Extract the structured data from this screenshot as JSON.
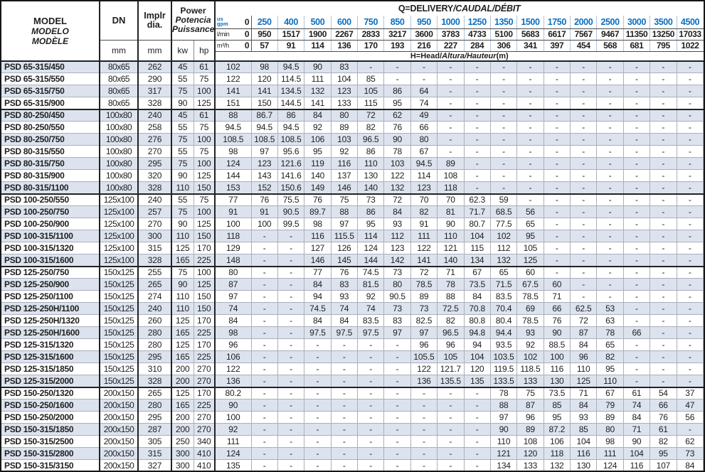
{
  "header": {
    "model_lines": [
      "MODEL",
      "MODELO",
      "MODÈLE"
    ],
    "dn_label": "DN",
    "implr_lines": [
      "Implr",
      "dia."
    ],
    "power_lines": [
      "Power",
      "Potencia",
      "Puissance"
    ],
    "mm": "mm",
    "kw": "kw",
    "hp": "hp",
    "q_label_main": "Q=DELIVERY",
    "q_label_intl": "/CAUDAL/DÉBIT",
    "h_label_pre": "H=Head/",
    "h_label_it": "Altura/Hauteur",
    "h_label_post": "(m)",
    "units": {
      "gpm_top": "us",
      "gpm_bottom": "gpm",
      "lmin": "l/min",
      "m3h": "m³/h"
    },
    "flow": {
      "gpm": [
        "0",
        "250",
        "400",
        "500",
        "600",
        "750",
        "850",
        "950",
        "1000",
        "1250",
        "1350",
        "1500",
        "1750",
        "2000",
        "2500",
        "3000",
        "3500",
        "4500"
      ],
      "lmin": [
        "0",
        "950",
        "1517",
        "1900",
        "2267",
        "2833",
        "3217",
        "3600",
        "3783",
        "4733",
        "5100",
        "5683",
        "6617",
        "7567",
        "9467",
        "11350",
        "13250",
        "17033"
      ],
      "m3h": [
        "0",
        "57",
        "91",
        "114",
        "136",
        "170",
        "193",
        "216",
        "227",
        "284",
        "306",
        "341",
        "397",
        "454",
        "568",
        "681",
        "795",
        "1022"
      ]
    }
  },
  "colors": {
    "accent_blue": "#0b6fc1",
    "row_shade": "#dce3ee",
    "border_dark": "#222222",
    "border_light": "#a9b0ba"
  },
  "table": {
    "rows": [
      {
        "model": "PSD 65-315/450",
        "dn": "80x65",
        "dia": "262",
        "kw": "45",
        "hp": "61",
        "group_end": false,
        "head": [
          "102",
          "98",
          "94.5",
          "90",
          "83",
          "-",
          "-",
          "-",
          "-",
          "-",
          "-",
          "-",
          "-",
          "-",
          "-",
          "-",
          "-",
          "-"
        ]
      },
      {
        "model": "PSD 65-315/550",
        "dn": "80x65",
        "dia": "290",
        "kw": "55",
        "hp": "75",
        "group_end": false,
        "head": [
          "122",
          "120",
          "114.5",
          "111",
          "104",
          "85",
          "-",
          "-",
          "-",
          "-",
          "-",
          "-",
          "-",
          "-",
          "-",
          "-",
          "-",
          "-"
        ]
      },
      {
        "model": "PSD 65-315/750",
        "dn": "80x65",
        "dia": "317",
        "kw": "75",
        "hp": "100",
        "group_end": false,
        "head": [
          "141",
          "141",
          "134.5",
          "132",
          "123",
          "105",
          "86",
          "64",
          "-",
          "-",
          "-",
          "-",
          "-",
          "-",
          "-",
          "-",
          "-",
          "-"
        ]
      },
      {
        "model": "PSD 65-315/900",
        "dn": "80x65",
        "dia": "328",
        "kw": "90",
        "hp": "125",
        "group_end": true,
        "head": [
          "151",
          "150",
          "144.5",
          "141",
          "133",
          "115",
          "95",
          "74",
          "-",
          "-",
          "-",
          "-",
          "-",
          "-",
          "-",
          "-",
          "-",
          "-"
        ]
      },
      {
        "model": "PSD 80-250/450",
        "dn": "100x80",
        "dia": "240",
        "kw": "45",
        "hp": "61",
        "group_end": false,
        "head": [
          "88",
          "86.7",
          "86",
          "84",
          "80",
          "72",
          "62",
          "49",
          "-",
          "-",
          "-",
          "-",
          "-",
          "-",
          "-",
          "-",
          "-",
          "-"
        ]
      },
      {
        "model": "PSD 80-250/550",
        "dn": "100x80",
        "dia": "258",
        "kw": "55",
        "hp": "75",
        "group_end": false,
        "head": [
          "94.5",
          "94.5",
          "94.5",
          "92",
          "89",
          "82",
          "76",
          "66",
          "-",
          "-",
          "-",
          "-",
          "-",
          "-",
          "-",
          "-",
          "-",
          "-"
        ]
      },
      {
        "model": "PSD 80-250/750",
        "dn": "100x80",
        "dia": "276",
        "kw": "75",
        "hp": "100",
        "group_end": false,
        "head": [
          "108.5",
          "108.5",
          "108.5",
          "106",
          "103",
          "96.5",
          "90",
          "80",
          "-",
          "-",
          "-",
          "-",
          "-",
          "-",
          "-",
          "-",
          "-",
          "-"
        ]
      },
      {
        "model": "PSD 80-315/550",
        "dn": "100x80",
        "dia": "270",
        "kw": "55",
        "hp": "75",
        "group_end": false,
        "head": [
          "98",
          "97",
          "95.6",
          "95",
          "92",
          "86",
          "78",
          "67",
          "-",
          "-",
          "-",
          "-",
          "-",
          "-",
          "-",
          "-",
          "-",
          "-"
        ]
      },
      {
        "model": "PSD 80-315/750",
        "dn": "100x80",
        "dia": "295",
        "kw": "75",
        "hp": "100",
        "group_end": false,
        "head": [
          "124",
          "123",
          "121.6",
          "119",
          "116",
          "110",
          "103",
          "94.5",
          "89",
          "-",
          "-",
          "-",
          "-",
          "-",
          "-",
          "-",
          "-",
          "-"
        ]
      },
      {
        "model": "PSD 80-315/900",
        "dn": "100x80",
        "dia": "320",
        "kw": "90",
        "hp": "125",
        "group_end": false,
        "head": [
          "144",
          "143",
          "141.6",
          "140",
          "137",
          "130",
          "122",
          "114",
          "108",
          "-",
          "-",
          "-",
          "-",
          "-",
          "-",
          "-",
          "-",
          "-"
        ]
      },
      {
        "model": "PSD 80-315/1100",
        "dn": "100x80",
        "dia": "328",
        "kw": "110",
        "hp": "150",
        "group_end": true,
        "head": [
          "153",
          "152",
          "150.6",
          "149",
          "146",
          "140",
          "132",
          "123",
          "118",
          "-",
          "-",
          "-",
          "-",
          "-",
          "-",
          "-",
          "-",
          "-"
        ]
      },
      {
        "model": "PSD 100-250/550",
        "dn": "125x100",
        "dia": "240",
        "kw": "55",
        "hp": "75",
        "group_end": false,
        "head": [
          "77",
          "76",
          "75.5",
          "76",
          "75",
          "73",
          "72",
          "70",
          "70",
          "62.3",
          "59",
          "-",
          "-",
          "-",
          "-",
          "-",
          "-",
          "-"
        ]
      },
      {
        "model": "PSD 100-250/750",
        "dn": "125x100",
        "dia": "257",
        "kw": "75",
        "hp": "100",
        "group_end": false,
        "head": [
          "91",
          "91",
          "90.5",
          "89.7",
          "88",
          "86",
          "84",
          "82",
          "81",
          "71.7",
          "68.5",
          "56",
          "-",
          "-",
          "-",
          "-",
          "-",
          "-"
        ]
      },
      {
        "model": "PSD 100-250/900",
        "dn": "125x100",
        "dia": "270",
        "kw": "90",
        "hp": "125",
        "group_end": false,
        "head": [
          "100",
          "100",
          "99.5",
          "98",
          "97",
          "95",
          "93",
          "91",
          "90",
          "80.7",
          "77.5",
          "65",
          "-",
          "-",
          "-",
          "-",
          "-",
          "-"
        ]
      },
      {
        "model": "PSD 100-315/1100",
        "dn": "125x100",
        "dia": "300",
        "kw": "110",
        "hp": "150",
        "group_end": false,
        "head": [
          "118",
          "-",
          "-",
          "116",
          "115.5",
          "114",
          "112",
          "111",
          "110",
          "104",
          "102",
          "95",
          "-",
          "-",
          "-",
          "-",
          "-",
          "-"
        ]
      },
      {
        "model": "PSD 100-315/1320",
        "dn": "125x100",
        "dia": "315",
        "kw": "125",
        "hp": "170",
        "group_end": false,
        "head": [
          "129",
          "-",
          "-",
          "127",
          "126",
          "124",
          "123",
          "122",
          "121",
          "115",
          "112",
          "105",
          "-",
          "-",
          "-",
          "-",
          "-",
          "-"
        ]
      },
      {
        "model": "PSD 100-315/1600",
        "dn": "125x100",
        "dia": "328",
        "kw": "165",
        "hp": "225",
        "group_end": true,
        "head": [
          "148",
          "-",
          "-",
          "146",
          "145",
          "144",
          "142",
          "141",
          "140",
          "134",
          "132",
          "125",
          "-",
          "-",
          "-",
          "-",
          "-",
          "-"
        ]
      },
      {
        "model": "PSD 125-250/750",
        "dn": "150x125",
        "dia": "255",
        "kw": "75",
        "hp": "100",
        "group_end": false,
        "head": [
          "80",
          "-",
          "-",
          "77",
          "76",
          "74.5",
          "73",
          "72",
          "71",
          "67",
          "65",
          "60",
          "-",
          "-",
          "-",
          "-",
          "-",
          "-"
        ]
      },
      {
        "model": "PSD 125-250/900",
        "dn": "150x125",
        "dia": "265",
        "kw": "90",
        "hp": "125",
        "group_end": false,
        "head": [
          "87",
          "-",
          "-",
          "84",
          "83",
          "81.5",
          "80",
          "78.5",
          "78",
          "73.5",
          "71.5",
          "67.5",
          "60",
          "-",
          "-",
          "-",
          "-",
          "-"
        ]
      },
      {
        "model": "PSD 125-250/1100",
        "dn": "150x125",
        "dia": "274",
        "kw": "110",
        "hp": "150",
        "group_end": false,
        "head": [
          "97",
          "-",
          "-",
          "94",
          "93",
          "92",
          "90.5",
          "89",
          "88",
          "84",
          "83.5",
          "78.5",
          "71",
          "-",
          "-",
          "-",
          "-",
          "-"
        ]
      },
      {
        "model": "PSD 125-250H/1100",
        "dn": "150x125",
        "dia": "240",
        "kw": "110",
        "hp": "150",
        "group_end": false,
        "head": [
          "74",
          "-",
          "-",
          "74.5",
          "74",
          "74",
          "73",
          "73",
          "72.5",
          "70.8",
          "70.4",
          "69",
          "66",
          "62.5",
          "53",
          "-",
          "-",
          "-"
        ]
      },
      {
        "model": "PSD 125-250H/1320",
        "dn": "150x125",
        "dia": "260",
        "kw": "125",
        "hp": "170",
        "group_end": false,
        "head": [
          "84",
          "-",
          "-",
          "84",
          "84",
          "83.5",
          "83",
          "82.5",
          "82",
          "80.8",
          "80.4",
          "78.5",
          "76",
          "72",
          "63",
          "-",
          "-",
          "-"
        ]
      },
      {
        "model": "PSD 125-250H/1600",
        "dn": "150x125",
        "dia": "280",
        "kw": "165",
        "hp": "225",
        "group_end": false,
        "head": [
          "98",
          "-",
          "-",
          "97.5",
          "97.5",
          "97.5",
          "97",
          "97",
          "96.5",
          "94.8",
          "94.4",
          "93",
          "90",
          "87",
          "78",
          "66",
          "-",
          "-"
        ]
      },
      {
        "model": "PSD 125-315/1320",
        "dn": "150x125",
        "dia": "280",
        "kw": "125",
        "hp": "170",
        "group_end": false,
        "head": [
          "96",
          "-",
          "-",
          "-",
          "-",
          "-",
          "-",
          "96",
          "96",
          "94",
          "93.5",
          "92",
          "88.5",
          "84",
          "65",
          "-",
          "-",
          "-"
        ]
      },
      {
        "model": "PSD 125-315/1600",
        "dn": "150x125",
        "dia": "295",
        "kw": "165",
        "hp": "225",
        "group_end": false,
        "head": [
          "106",
          "-",
          "-",
          "-",
          "-",
          "-",
          "-",
          "105.5",
          "105",
          "104",
          "103.5",
          "102",
          "100",
          "96",
          "82",
          "-",
          "-",
          "-"
        ]
      },
      {
        "model": "PSD 125-315/1850",
        "dn": "150x125",
        "dia": "310",
        "kw": "200",
        "hp": "270",
        "group_end": false,
        "head": [
          "122",
          "-",
          "-",
          "-",
          "-",
          "-",
          "-",
          "122",
          "121.7",
          "120",
          "119.5",
          "118.5",
          "116",
          "110",
          "95",
          "-",
          "-",
          "-"
        ]
      },
      {
        "model": "PSD 125-315/2000",
        "dn": "150x125",
        "dia": "328",
        "kw": "200",
        "hp": "270",
        "group_end": true,
        "head": [
          "136",
          "-",
          "-",
          "-",
          "-",
          "-",
          "-",
          "136",
          "135.5",
          "135",
          "133.5",
          "133",
          "130",
          "125",
          "110",
          "-",
          "-",
          "-"
        ]
      },
      {
        "model": "PSD 150-250/1320",
        "dn": "200x150",
        "dia": "265",
        "kw": "125",
        "hp": "170",
        "group_end": false,
        "head": [
          "80.2",
          "-",
          "-",
          "-",
          "-",
          "-",
          "-",
          "-",
          "-",
          "-",
          "78",
          "75",
          "73.5",
          "71",
          "67",
          "61",
          "54",
          "37"
        ]
      },
      {
        "model": "PSD 150-250/1600",
        "dn": "200x150",
        "dia": "280",
        "kw": "165",
        "hp": "225",
        "group_end": false,
        "head": [
          "90",
          "-",
          "-",
          "-",
          "-",
          "-",
          "-",
          "-",
          "-",
          "-",
          "88",
          "87",
          "85",
          "84",
          "79",
          "74",
          "66",
          "47"
        ]
      },
      {
        "model": "PSD 150-250/2000",
        "dn": "200x150",
        "dia": "295",
        "kw": "200",
        "hp": "270",
        "group_end": false,
        "head": [
          "100",
          "-",
          "-",
          "-",
          "-",
          "-",
          "-",
          "-",
          "-",
          "-",
          "97",
          "96",
          "95",
          "93",
          "89",
          "84",
          "76",
          "56"
        ]
      },
      {
        "model": "PSD 150-315/1850",
        "dn": "200x150",
        "dia": "287",
        "kw": "200",
        "hp": "270",
        "group_end": false,
        "head": [
          "92",
          "-",
          "-",
          "-",
          "-",
          "-",
          "-",
          "-",
          "-",
          "-",
          "90",
          "89",
          "87.2",
          "85",
          "80",
          "71",
          "61",
          "-"
        ]
      },
      {
        "model": "PSD 150-315/2500",
        "dn": "200x150",
        "dia": "305",
        "kw": "250",
        "hp": "340",
        "group_end": false,
        "head": [
          "111",
          "-",
          "-",
          "-",
          "-",
          "-",
          "-",
          "-",
          "-",
          "-",
          "110",
          "108",
          "106",
          "104",
          "98",
          "90",
          "82",
          "62"
        ]
      },
      {
        "model": "PSD 150-315/2800",
        "dn": "200x150",
        "dia": "315",
        "kw": "300",
        "hp": "410",
        "group_end": false,
        "head": [
          "124",
          "-",
          "-",
          "-",
          "-",
          "-",
          "-",
          "-",
          "-",
          "-",
          "121",
          "120",
          "118",
          "116",
          "111",
          "104",
          "95",
          "73"
        ]
      },
      {
        "model": "PSD 150-315/3150",
        "dn": "200x150",
        "dia": "327",
        "kw": "300",
        "hp": "410",
        "group_end": false,
        "head": [
          "135",
          "-",
          "-",
          "-",
          "-",
          "-",
          "-",
          "-",
          "-",
          "-",
          "134",
          "133",
          "132",
          "130",
          "124",
          "116",
          "107",
          "84"
        ]
      }
    ]
  }
}
